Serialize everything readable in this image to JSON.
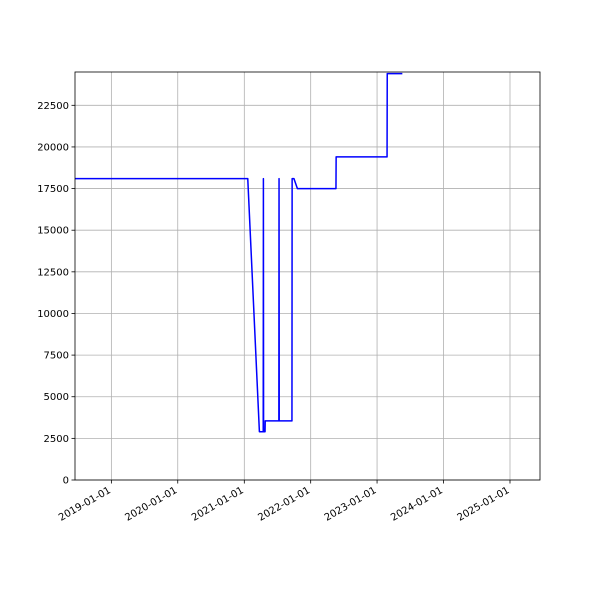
{
  "chart_data": {
    "type": "line",
    "title": "",
    "xlabel": "",
    "ylabel": "",
    "x_axis": {
      "kind": "date",
      "range": [
        "2018-06-15",
        "2025-06-15"
      ],
      "ticks": [
        "2019-01-01",
        "2020-01-01",
        "2021-01-01",
        "2022-01-01",
        "2023-01-01",
        "2024-01-01",
        "2025-01-01"
      ]
    },
    "y_axis": {
      "range": [
        0,
        24500
      ],
      "ticks": [
        0,
        2500,
        5000,
        7500,
        10000,
        12500,
        15000,
        17500,
        20000,
        22500
      ],
      "tick_labels": [
        "0",
        "2500",
        "5000",
        "7500",
        "10000",
        "12500",
        "15000",
        "17500",
        "20000",
        "22500"
      ]
    },
    "grid": true,
    "series": [
      {
        "color": "#0000ff",
        "x": [
          "2018-06-15",
          "2021-01-20",
          "2021-03-25",
          "2021-04-15",
          "2021-04-16",
          "2021-04-17",
          "2021-04-25",
          "2021-04-26",
          "2021-04-30",
          "2021-05-20",
          "2021-07-10",
          "2021-07-11",
          "2021-07-12",
          "2021-09-20",
          "2021-09-21",
          "2021-10-01",
          "2021-10-20",
          "2021-11-20",
          "2022-05-20",
          "2022-05-21",
          "2023-02-25",
          "2023-02-26",
          "2023-05-20"
        ],
        "y": [
          18100,
          18100,
          2900,
          2900,
          18100,
          2900,
          2900,
          3550,
          3550,
          3550,
          3550,
          18100,
          3550,
          3550,
          18100,
          18100,
          17500,
          17500,
          17500,
          19400,
          19400,
          24400,
          24400
        ]
      }
    ],
    "legend": "none"
  }
}
